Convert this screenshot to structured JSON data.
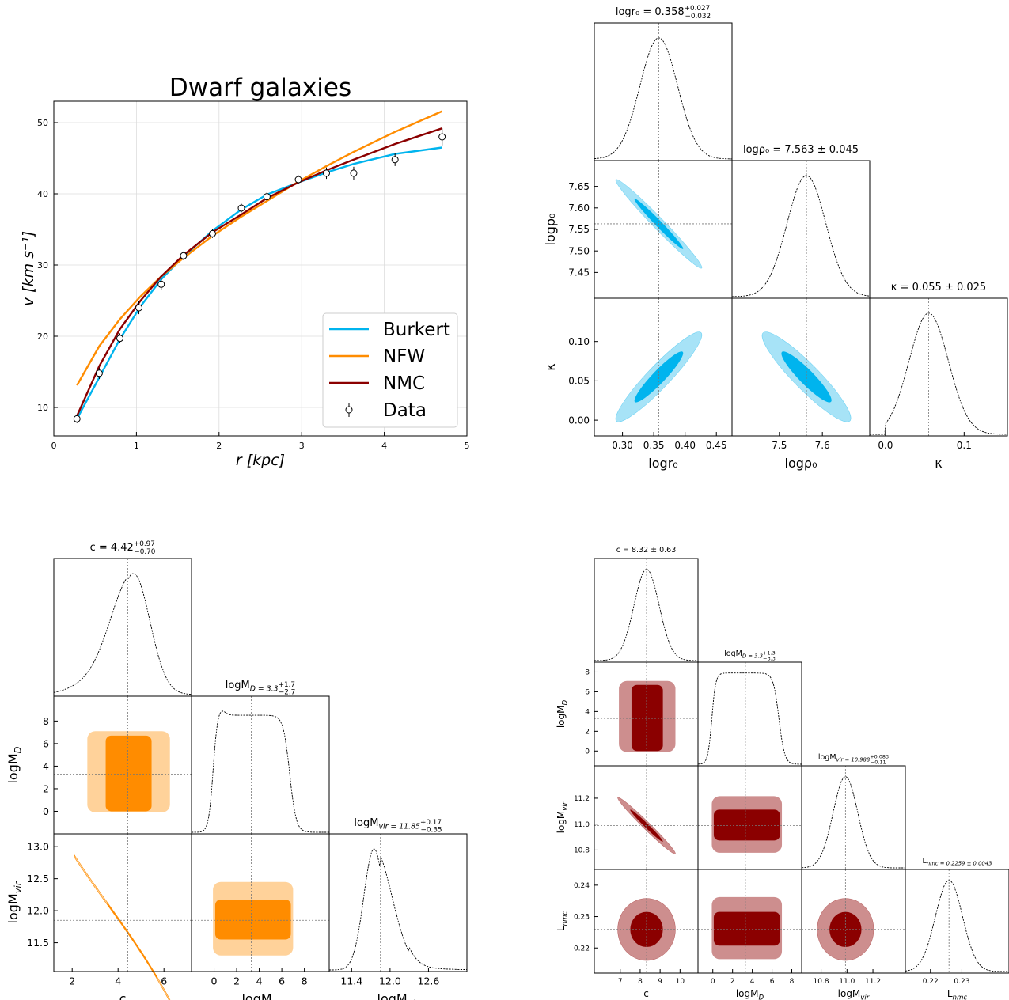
{
  "colors": {
    "burkert": "#00b4ee",
    "nfw": "#ff8c00",
    "nmc": "#8b0000",
    "burkert_light": "#a7e3f7",
    "nfw_light": "#ffd29a",
    "nmc_light": "#cd8e8e",
    "data_marker": "#000000"
  },
  "chart_data": [
    {
      "id": "rotation_curve",
      "type": "line",
      "title": "Dwarf galaxies",
      "xlabel": "r [kpc]",
      "ylabel": "v [km s⁻¹]",
      "xlim": [
        0,
        5
      ],
      "ylim": [
        6,
        53
      ],
      "xticks": [
        "0",
        "1",
        "2",
        "3",
        "4",
        "5"
      ],
      "yticks": [
        "10",
        "20",
        "30",
        "40",
        "50"
      ],
      "grid": true,
      "legend_position": "lower-right",
      "series": [
        {
          "name": "Burkert",
          "color": "#00b4ee",
          "x": [
            0.28,
            0.55,
            0.8,
            1.05,
            1.3,
            1.57,
            1.92,
            2.27,
            2.58,
            2.96,
            3.3,
            3.63,
            4.13,
            4.7
          ],
          "y": [
            8.4,
            14.2,
            19.6,
            24.2,
            28.0,
            31.2,
            34.8,
            37.8,
            39.9,
            41.6,
            43.0,
            44.2,
            45.6,
            46.5
          ]
        },
        {
          "name": "NFW",
          "color": "#ff8c00",
          "x": [
            0.28,
            0.55,
            0.8,
            1.05,
            1.3,
            1.57,
            1.92,
            2.27,
            2.58,
            2.96,
            3.3,
            3.63,
            4.13,
            4.7
          ],
          "y": [
            13.1,
            18.6,
            22.4,
            25.6,
            28.4,
            31.0,
            34.1,
            36.8,
            39.0,
            41.7,
            43.9,
            45.9,
            48.7,
            51.6
          ]
        },
        {
          "name": "NMC",
          "color": "#8b0000",
          "x": [
            0.28,
            0.55,
            0.8,
            1.05,
            1.3,
            1.57,
            1.92,
            2.27,
            2.58,
            2.96,
            3.3,
            3.63,
            4.13,
            4.7
          ],
          "y": [
            8.8,
            15.8,
            21.0,
            25.0,
            28.4,
            31.4,
            34.6,
            37.1,
            39.4,
            41.6,
            43.3,
            44.8,
            47.0,
            49.2
          ]
        },
        {
          "name": "Data",
          "color": "#000000",
          "marker": "o",
          "x": [
            0.28,
            0.55,
            0.8,
            1.03,
            1.3,
            1.57,
            1.92,
            2.27,
            2.58,
            2.96,
            3.3,
            3.63,
            4.13,
            4.7
          ],
          "y": [
            8.4,
            14.8,
            19.7,
            24.0,
            27.3,
            31.3,
            34.4,
            38.0,
            39.6,
            42.0,
            42.9,
            42.9,
            44.8,
            48.0
          ],
          "err": [
            0.6,
            0.8,
            0.7,
            0.9,
            0.8,
            0.6,
            0.6,
            0.6,
            0.6,
            0.6,
            0.8,
            0.9,
            0.9,
            1.2
          ]
        }
      ]
    },
    {
      "id": "corner_burkert",
      "type": "corner",
      "color": "#00b4ee",
      "light_color": "#a7e3f7",
      "params": [
        {
          "label": "logr₀",
          "title": "logr₀ = 0.358",
          "sup": "+0.027",
          "sub": "−0.032",
          "best": 0.358,
          "sigma": 0.03,
          "range": [
            0.255,
            0.475
          ],
          "ticks": [
            0.3,
            0.35,
            0.4,
            0.45
          ],
          "tick_labels": [
            "0.30",
            "0.35",
            "0.40",
            "0.45"
          ],
          "shape": "gauss"
        },
        {
          "label": "logρ₀",
          "title": "logρ₀ = 7.563 ± 0.045",
          "sup": "",
          "sub": "",
          "best": 7.563,
          "sigma": 0.045,
          "range": [
            7.39,
            7.71
          ],
          "ticks": [
            7.45,
            7.5,
            7.55,
            7.6,
            7.65
          ],
          "tick_labels": [
            "7.45",
            "7.50",
            "7.55",
            "7.60",
            "7.65"
          ],
          "xticks": [
            7.5,
            7.6
          ],
          "xtick_labels": [
            "7.5",
            "7.6"
          ],
          "shape": "gauss"
        },
        {
          "label": "κ",
          "title": "κ = 0.055 ± 0.025",
          "sup": "",
          "sub": "",
          "best": 0.055,
          "sigma": 0.025,
          "range": [
            -0.02,
            0.155
          ],
          "ticks": [
            0.0,
            0.05,
            0.1
          ],
          "tick_labels": [
            "0.00",
            "0.05",
            "0.10"
          ],
          "xticks": [
            0.0,
            0.1
          ],
          "xtick_labels": [
            "0.0",
            "0.1"
          ],
          "shape": "gauss_cut"
        }
      ],
      "pairs": [
        {
          "i": 1,
          "j": 0,
          "corr": -0.98
        },
        {
          "i": 2,
          "j": 0,
          "corr": 0.92
        },
        {
          "i": 2,
          "j": 1,
          "corr": -0.9
        }
      ]
    },
    {
      "id": "corner_nfw",
      "type": "corner",
      "color": "#ff8c00",
      "light_color": "#ffd29a",
      "params": [
        {
          "label": "c",
          "title": "c = 4.42",
          "sup": "+0.97",
          "sub": "−0.70",
          "best": 4.42,
          "sigma": 0.8,
          "range": [
            1.2,
            7.2
          ],
          "ticks": [
            2,
            4,
            6
          ],
          "tick_labels": [
            "2",
            "4",
            "6"
          ],
          "shape": "skew"
        },
        {
          "label": "logM_D",
          "title": "logM_D = 3.3",
          "sup": "+1.7",
          "sub": "−2.7",
          "best": 3.3,
          "sigma": 2.4,
          "range": [
            -2.0,
            10.2
          ],
          "ticks": [
            0,
            2,
            4,
            6,
            8
          ],
          "tick_labels": [
            "0",
            "2",
            "4",
            "6",
            "8"
          ],
          "shape": "plateau"
        },
        {
          "label": "logM_vir",
          "title": "logM_vir = 11.85",
          "sup": "+0.17",
          "sub": "−0.35",
          "best": 11.85,
          "sigma": 0.25,
          "range": [
            11.05,
            13.2
          ],
          "ticks": [
            11.5,
            12.0,
            12.5,
            13.0
          ],
          "tick_labels": [
            "11.5",
            "12.0",
            "12.5",
            "13.0"
          ],
          "xticks": [
            11.4,
            12.0,
            12.6
          ],
          "xtick_labels": [
            "11.4",
            "12.0",
            "12.6"
          ],
          "shape": "tail"
        }
      ],
      "pairs": [
        {
          "i": 1,
          "j": 0,
          "kind": "box"
        },
        {
          "i": 2,
          "j": 0,
          "kind": "curve"
        },
        {
          "i": 2,
          "j": 1,
          "kind": "box"
        }
      ]
    },
    {
      "id": "corner_nmc",
      "type": "corner",
      "color": "#8b0000",
      "light_color": "#cd8e8e",
      "params": [
        {
          "label": "c",
          "title": "c = 8.32 ± 0.63",
          "sup": "",
          "sub": "",
          "best": 8.32,
          "sigma": 0.63,
          "range": [
            5.7,
            10.9
          ],
          "ticks": [
            7,
            8,
            9,
            10
          ],
          "tick_labels": [
            "7",
            "8",
            "9",
            "10"
          ],
          "shape": "gauss"
        },
        {
          "label": "logM_D",
          "title": "logM_D = 3.3",
          "sup": "+1.3",
          "sub": "−3.3",
          "best": 3.3,
          "sigma": 2.4,
          "range": [
            -1.5,
            9.0
          ],
          "ticks": [
            0,
            2,
            4,
            6,
            8
          ],
          "tick_labels": [
            "0",
            "2",
            "4",
            "6",
            "8"
          ],
          "shape": "plateau_left"
        },
        {
          "label": "logM_vir",
          "title": "logM_vir = 10.988",
          "sup": "+0.083",
          "sub": "−0.11",
          "best": 10.988,
          "sigma": 0.095,
          "range": [
            10.65,
            11.45
          ],
          "ticks": [
            10.8,
            11.0,
            11.2
          ],
          "tick_labels": [
            "10.8",
            "11.0",
            "11.2"
          ],
          "shape": "gauss"
        },
        {
          "label": "L_nmc",
          "title": "L_nmc = 0.2259 ± 0.0043",
          "sup": "",
          "sub": "",
          "best": 0.2259,
          "sigma": 0.0043,
          "range": [
            0.212,
            0.245
          ],
          "ticks": [
            0.22,
            0.23,
            0.24
          ],
          "tick_labels": [
            "0.22",
            "0.23",
            "0.24"
          ],
          "xticks": [
            0.22,
            0.23
          ],
          "xtick_labels": [
            "0.22",
            "0.23"
          ],
          "shape": "gauss"
        }
      ],
      "pairs": [
        {
          "i": 1,
          "j": 0,
          "kind": "box"
        },
        {
          "i": 2,
          "j": 0,
          "corr": -0.99
        },
        {
          "i": 2,
          "j": 1,
          "kind": "box"
        },
        {
          "i": 3,
          "j": 0,
          "corr": 0.0
        },
        {
          "i": 3,
          "j": 1,
          "kind": "box"
        },
        {
          "i": 3,
          "j": 2,
          "corr": 0.0
        }
      ]
    }
  ]
}
